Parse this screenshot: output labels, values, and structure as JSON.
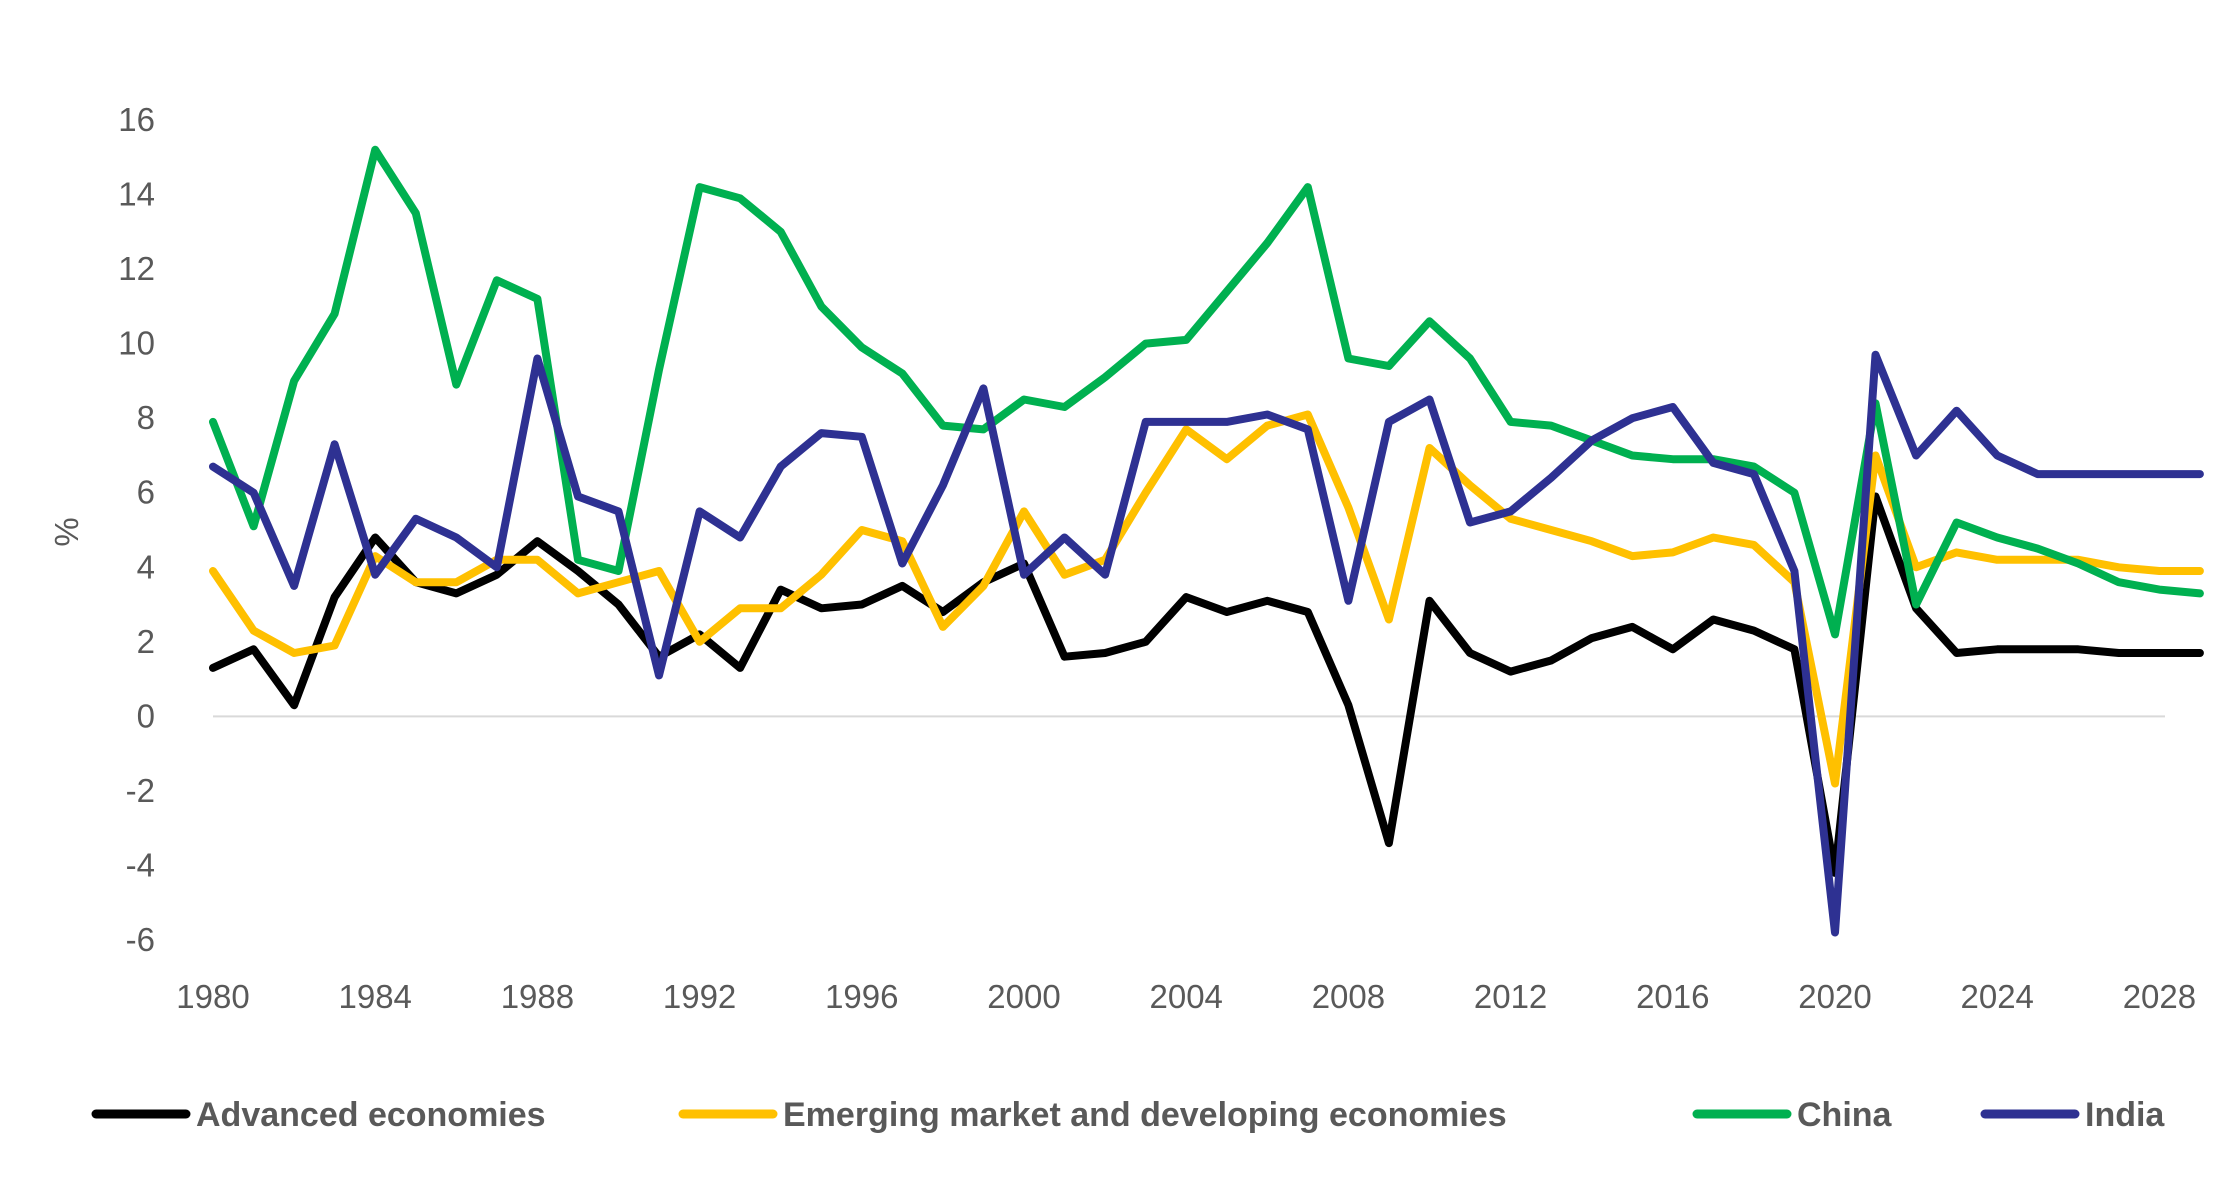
{
  "chart_data": {
    "type": "line",
    "xlabel": "",
    "ylabel": "%",
    "ylim": [
      -6,
      16
    ],
    "y_ticks": [
      "16",
      "14",
      "12",
      "10",
      "8",
      "6",
      "4",
      "2",
      "0",
      "-2",
      "-4",
      "-6"
    ],
    "x_ticks": [
      "1980",
      "1984",
      "1988",
      "1992",
      "1996",
      "2000",
      "2004",
      "2008",
      "2012",
      "2016",
      "2020",
      "2024",
      "2028"
    ],
    "grid": false,
    "zero_line": true,
    "legend_position": "bottom",
    "x": [
      1980,
      1981,
      1982,
      1983,
      1984,
      1985,
      1986,
      1987,
      1988,
      1989,
      1990,
      1991,
      1992,
      1993,
      1994,
      1995,
      1996,
      1997,
      1998,
      1999,
      2000,
      2001,
      2002,
      2003,
      2004,
      2005,
      2006,
      2007,
      2008,
      2009,
      2010,
      2011,
      2012,
      2013,
      2014,
      2015,
      2016,
      2017,
      2018,
      2019,
      2020,
      2021,
      2022,
      2023,
      2024,
      2025,
      2026,
      2027,
      2028,
      2029
    ],
    "series": [
      {
        "name": "Advanced economies",
        "color": "#000000",
        "values": [
          1.3,
          1.8,
          0.3,
          3.2,
          4.8,
          3.6,
          3.3,
          3.8,
          4.7,
          3.9,
          3.0,
          1.6,
          2.2,
          1.3,
          3.4,
          2.9,
          3.0,
          3.5,
          2.8,
          3.6,
          4.1,
          1.6,
          1.7,
          2.0,
          3.2,
          2.8,
          3.1,
          2.8,
          0.3,
          -3.4,
          3.1,
          1.7,
          1.2,
          1.5,
          2.1,
          2.4,
          1.8,
          2.6,
          2.3,
          1.8,
          -4.2,
          5.9,
          2.9,
          1.7,
          1.8,
          1.8,
          1.8,
          1.7,
          1.7,
          1.7
        ]
      },
      {
        "name": "Emerging market and developing economies",
        "color": "#FFC000",
        "values": [
          3.9,
          2.3,
          1.7,
          1.9,
          4.3,
          3.6,
          3.6,
          4.2,
          4.2,
          3.3,
          3.6,
          3.9,
          2.0,
          2.9,
          2.9,
          3.8,
          5.0,
          4.7,
          2.4,
          3.5,
          5.5,
          3.8,
          4.2,
          6.0,
          7.7,
          6.9,
          7.8,
          8.1,
          5.6,
          2.6,
          7.2,
          6.2,
          5.3,
          5.0,
          4.7,
          4.3,
          4.4,
          4.8,
          4.6,
          3.6,
          -1.8,
          7.0,
          4.0,
          4.4,
          4.2,
          4.2,
          4.2,
          4.0,
          3.9,
          3.9
        ]
      },
      {
        "name": "China",
        "color": "#00B050",
        "values": [
          7.9,
          5.1,
          9.0,
          10.8,
          15.2,
          13.5,
          8.9,
          11.7,
          11.2,
          4.2,
          3.9,
          9.3,
          14.2,
          13.9,
          13.0,
          11.0,
          9.9,
          9.2,
          7.8,
          7.7,
          8.5,
          8.3,
          9.1,
          10.0,
          10.1,
          11.4,
          12.7,
          14.2,
          9.6,
          9.4,
          10.6,
          9.6,
          7.9,
          7.8,
          7.4,
          7.0,
          6.9,
          6.9,
          6.7,
          6.0,
          2.2,
          8.4,
          3.0,
          5.2,
          4.8,
          4.5,
          4.1,
          3.6,
          3.4,
          3.3
        ]
      },
      {
        "name": "India",
        "color": "#2E3192",
        "values": [
          6.7,
          6.0,
          3.5,
          7.3,
          3.8,
          5.3,
          4.8,
          4.0,
          9.6,
          5.9,
          5.5,
          1.1,
          5.5,
          4.8,
          6.7,
          7.6,
          7.5,
          4.1,
          6.2,
          8.8,
          3.8,
          4.8,
          3.8,
          7.9,
          7.9,
          7.9,
          8.1,
          7.7,
          3.1,
          7.9,
          8.5,
          5.2,
          5.5,
          6.4,
          7.4,
          8.0,
          8.3,
          6.8,
          6.5,
          3.9,
          -5.8,
          9.7,
          7.0,
          8.2,
          7.0,
          6.5,
          6.5,
          6.5,
          6.5,
          6.5
        ]
      }
    ]
  }
}
